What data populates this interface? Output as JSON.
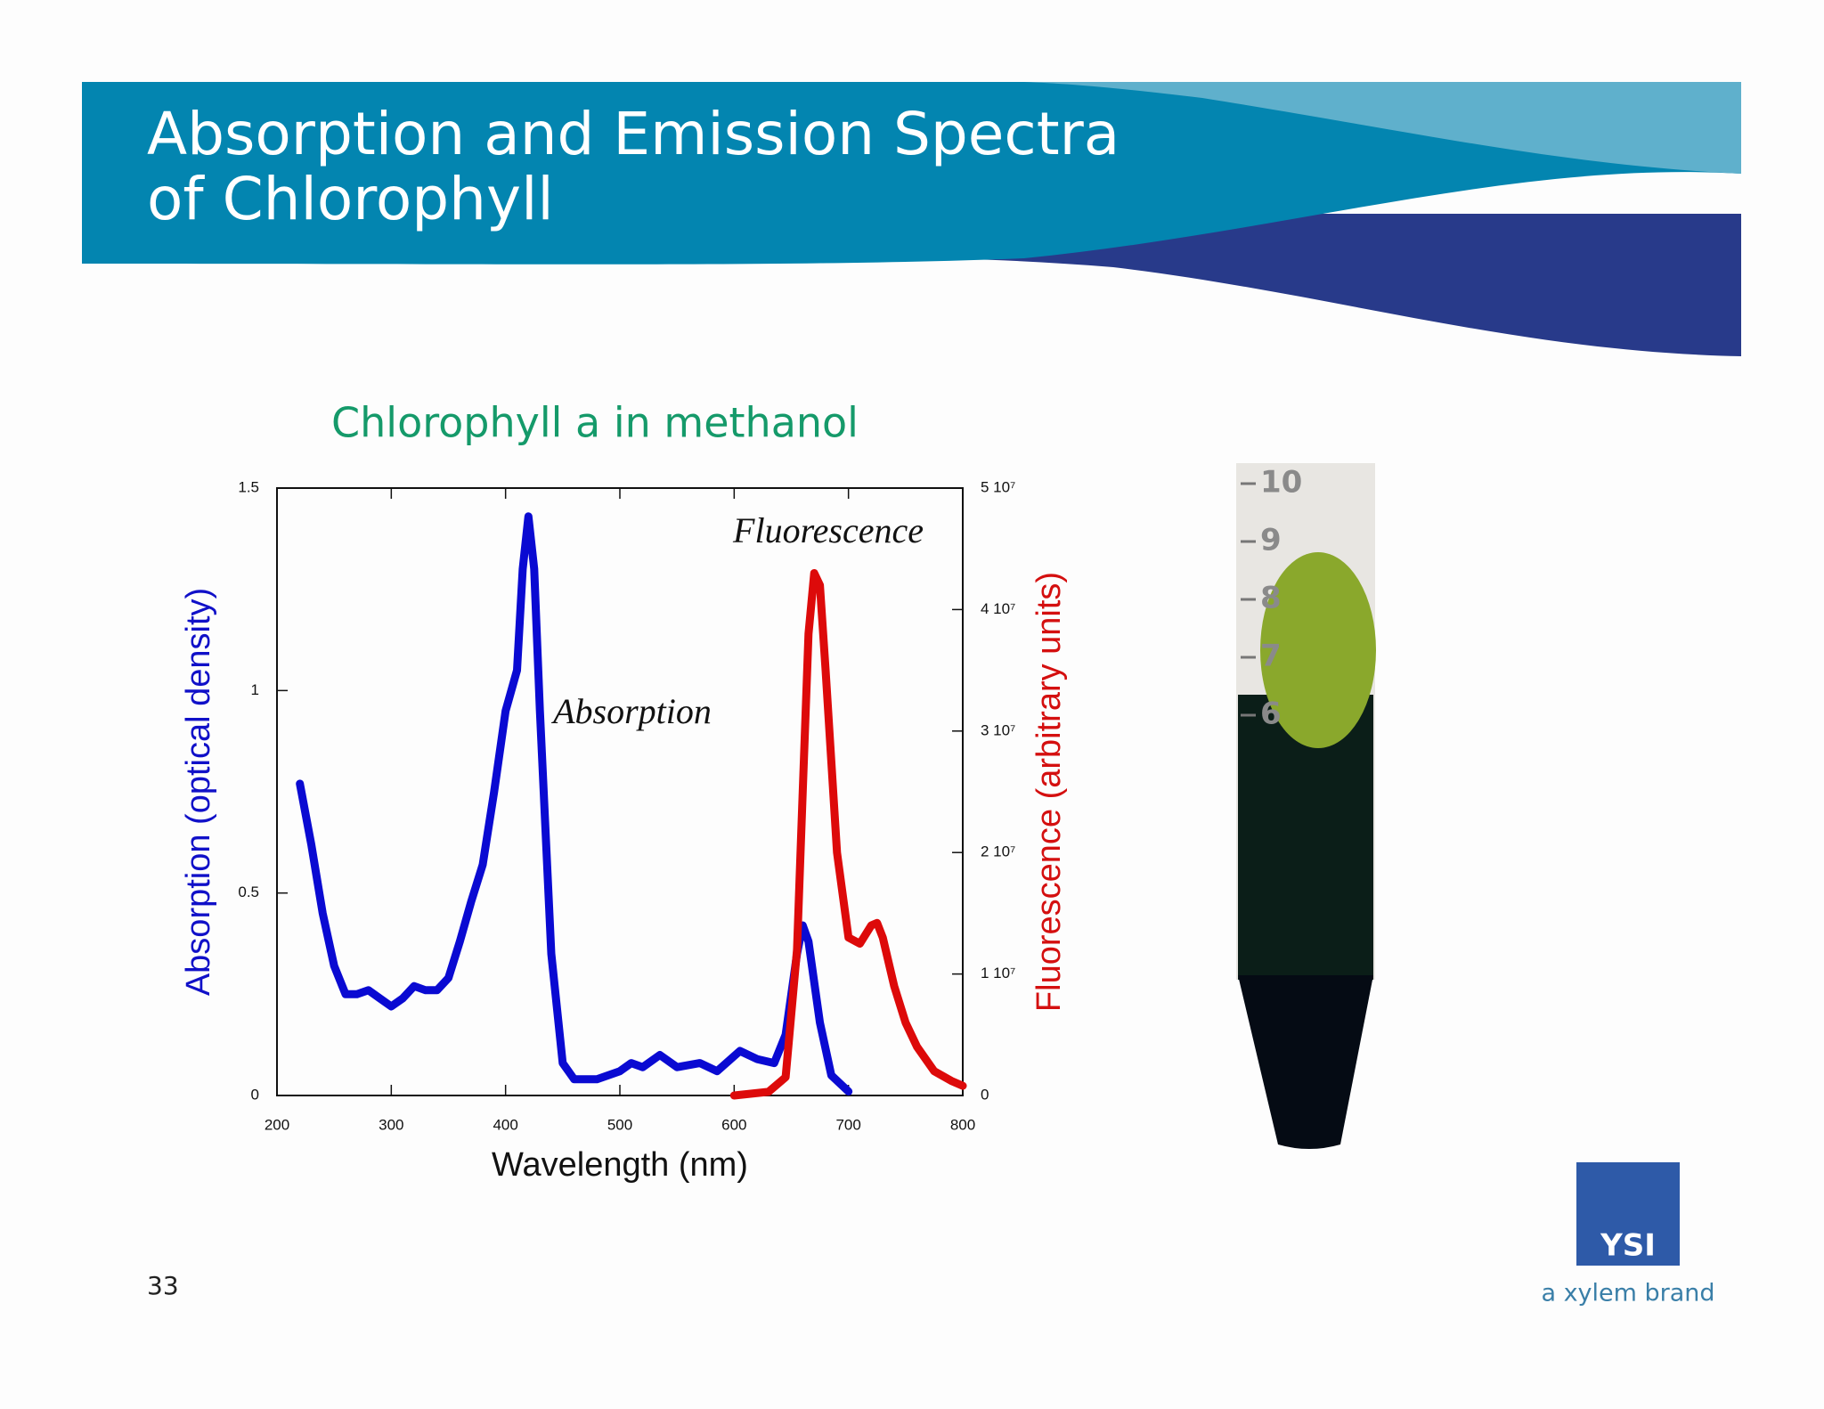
{
  "header": {
    "title": [
      "Absorption and Emission Spectra",
      "of Chlorophyll"
    ]
  },
  "page_number": "33",
  "logo": {
    "brand": "YSI",
    "tagline": "a xylem brand"
  },
  "tube_scale": [
    "10",
    "9",
    "8",
    "7",
    "6"
  ],
  "chart_data": {
    "type": "line",
    "subtitle": "Chlorophyll a in methanol",
    "x_label": "Wavelength (nm)",
    "y_label": "Absorption (optical density)",
    "y2_label": "Fluorescence (arbitrary units)",
    "annotations": [
      "Absorption",
      "Fluorescence"
    ],
    "xlim": [
      200,
      800
    ],
    "xticks": [
      200,
      300,
      400,
      500,
      600,
      700,
      800
    ],
    "ylim": [
      0,
      1.5
    ],
    "yticks": [
      0,
      0.5,
      1,
      1.5
    ],
    "y2lim": [
      0,
      50000000
    ],
    "y2ticks": [
      0,
      {
        "value": 10000000,
        "label": "1 10⁷"
      },
      {
        "value": 20000000,
        "label": "2 10⁷"
      },
      {
        "value": 30000000,
        "label": "3 10⁷"
      },
      {
        "value": 40000000,
        "label": "4 10⁷"
      },
      {
        "value": 50000000,
        "label": "5 10⁷"
      }
    ],
    "series": [
      {
        "name": "Absorption",
        "color": "#0a0ad2",
        "x": [
          220,
          230,
          240,
          250,
          260,
          270,
          280,
          290,
          300,
          310,
          320,
          330,
          340,
          350,
          360,
          370,
          380,
          390,
          400,
          410,
          415,
          420,
          425,
          430,
          440,
          450,
          460,
          480,
          500,
          510,
          520,
          535,
          550,
          570,
          585,
          605,
          620,
          635,
          645,
          655,
          660,
          665,
          675,
          685,
          700
        ],
        "values": [
          0.77,
          0.62,
          0.45,
          0.32,
          0.25,
          0.25,
          0.26,
          0.24,
          0.22,
          0.24,
          0.27,
          0.26,
          0.26,
          0.29,
          0.38,
          0.48,
          0.57,
          0.75,
          0.95,
          1.05,
          1.3,
          1.43,
          1.3,
          0.95,
          0.35,
          0.08,
          0.04,
          0.04,
          0.06,
          0.08,
          0.07,
          0.1,
          0.07,
          0.08,
          0.06,
          0.11,
          0.09,
          0.08,
          0.15,
          0.35,
          0.42,
          0.38,
          0.18,
          0.05,
          0.01
        ]
      },
      {
        "name": "Fluorescence",
        "color": "#dd0a0a",
        "axis": "y2",
        "x": [
          600,
          630,
          645,
          655,
          660,
          665,
          670,
          675,
          680,
          690,
          700,
          710,
          720,
          725,
          730,
          740,
          750,
          760,
          775,
          790,
          800
        ],
        "values": [
          0,
          300000,
          1500000,
          12000000,
          25000000,
          38000000,
          43000000,
          42000000,
          35000000,
          20000000,
          13000000,
          12500000,
          14000000,
          14200000,
          13000000,
          9000000,
          6000000,
          4000000,
          2000000,
          1200000,
          800000
        ]
      }
    ]
  }
}
